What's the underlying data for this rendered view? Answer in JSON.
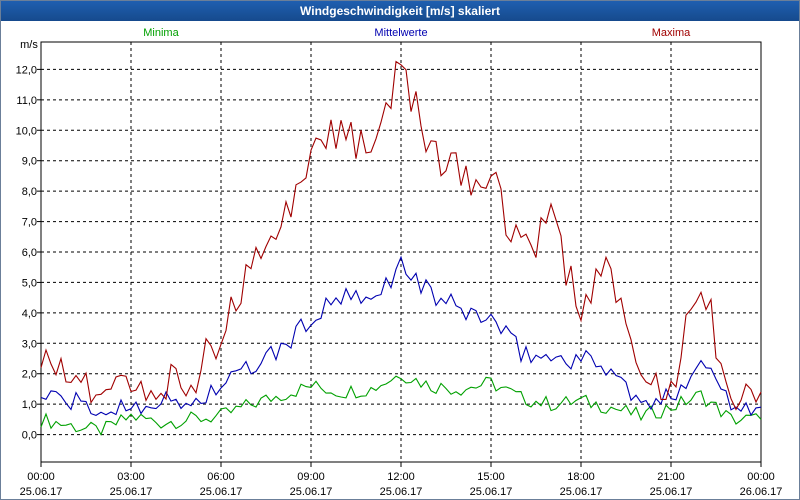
{
  "window": {
    "title": "Windgeschwindigkeit [m/s] skaliert"
  },
  "chart_data": {
    "type": "line",
    "title": "Windgeschwindigkeit [m/s] skaliert",
    "ylabel": "m/s",
    "xlabel": "",
    "ylim": [
      -0.9,
      12.9
    ],
    "xlim_hours": [
      0,
      24
    ],
    "y_ticks": [
      "0,0",
      "1,0",
      "2,0",
      "3,0",
      "4,0",
      "5,0",
      "6,0",
      "7,0",
      "8,0",
      "9,0",
      "10,0",
      "11,0",
      "12,0"
    ],
    "x_ticks": [
      {
        "time": "00:00",
        "date": "25.06.17"
      },
      {
        "time": "03:00",
        "date": "25.06.17"
      },
      {
        "time": "06:00",
        "date": "25.06.17"
      },
      {
        "time": "09:00",
        "date": "25.06.17"
      },
      {
        "time": "12:00",
        "date": "25.06.17"
      },
      {
        "time": "15:00",
        "date": "25.06.17"
      },
      {
        "time": "18:00",
        "date": "25.06.17"
      },
      {
        "time": "21:00",
        "date": "25.06.17"
      },
      {
        "time": "00:00",
        "date": "26.06.17"
      }
    ],
    "grid": true,
    "legend_position": "top",
    "x_hours": [
      0,
      1,
      2,
      3,
      4,
      5,
      6,
      7,
      8,
      9,
      10,
      11,
      12,
      13,
      14,
      15,
      16,
      17,
      18,
      19,
      20,
      21,
      22,
      23,
      24
    ],
    "series": [
      {
        "name": "Minima",
        "color": "#00a000",
        "values": [
          0.5,
          0.3,
          0.1,
          0.6,
          0.4,
          0.5,
          0.6,
          1.0,
          1.3,
          1.6,
          1.4,
          1.5,
          2.0,
          1.6,
          1.5,
          1.7,
          1.2,
          1.0,
          1.1,
          0.9,
          0.6,
          0.9,
          1.3,
          0.5,
          0.5
        ]
      },
      {
        "name": "Mittelwerte",
        "color": "#0000b0",
        "values": [
          1.3,
          1.1,
          0.7,
          1.0,
          1.1,
          1.0,
          1.6,
          2.2,
          2.8,
          3.8,
          4.5,
          4.3,
          5.6,
          4.6,
          4.1,
          3.8,
          2.7,
          2.5,
          2.5,
          2.2,
          0.9,
          1.2,
          2.5,
          1.1,
          0.9
        ]
      },
      {
        "name": "Maxima",
        "color": "#a00000",
        "values": [
          2.9,
          1.8,
          1.1,
          1.4,
          1.6,
          1.8,
          3.3,
          5.8,
          7.2,
          8.8,
          10.3,
          9.2,
          12.2,
          9.5,
          8.6,
          8.4,
          5.9,
          6.9,
          4.3,
          5.3,
          1.3,
          1.4,
          5.2,
          1.2,
          1.4
        ]
      }
    ]
  }
}
